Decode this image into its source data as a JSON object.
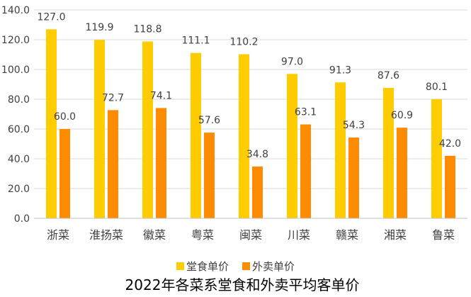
{
  "chart_data": {
    "type": "bar",
    "title": "2022年各菜系堂食和外卖平均客单价",
    "xlabel": "",
    "ylabel": "",
    "categories": [
      "浙菜",
      "淮扬菜",
      "徽菜",
      "粤菜",
      "闽菜",
      "川菜",
      "赣菜",
      "湘菜",
      "鲁菜"
    ],
    "series": [
      {
        "name": "堂食单价",
        "color": "#FFCC00",
        "values": [
          127.0,
          119.9,
          118.8,
          111.1,
          110.2,
          97.0,
          91.3,
          87.6,
          80.1
        ]
      },
      {
        "name": "外卖单价",
        "color": "#FF8C00",
        "values": [
          60.0,
          72.7,
          74.1,
          57.6,
          34.8,
          63.1,
          54.3,
          60.9,
          42.0
        ]
      }
    ],
    "ylim": [
      0,
      140
    ],
    "yticks": [
      "0.0",
      "20.0",
      "40.0",
      "60.0",
      "80.0",
      "100.0",
      "120.0",
      "140.0"
    ],
    "grid": true,
    "legend_position": "bottom"
  }
}
